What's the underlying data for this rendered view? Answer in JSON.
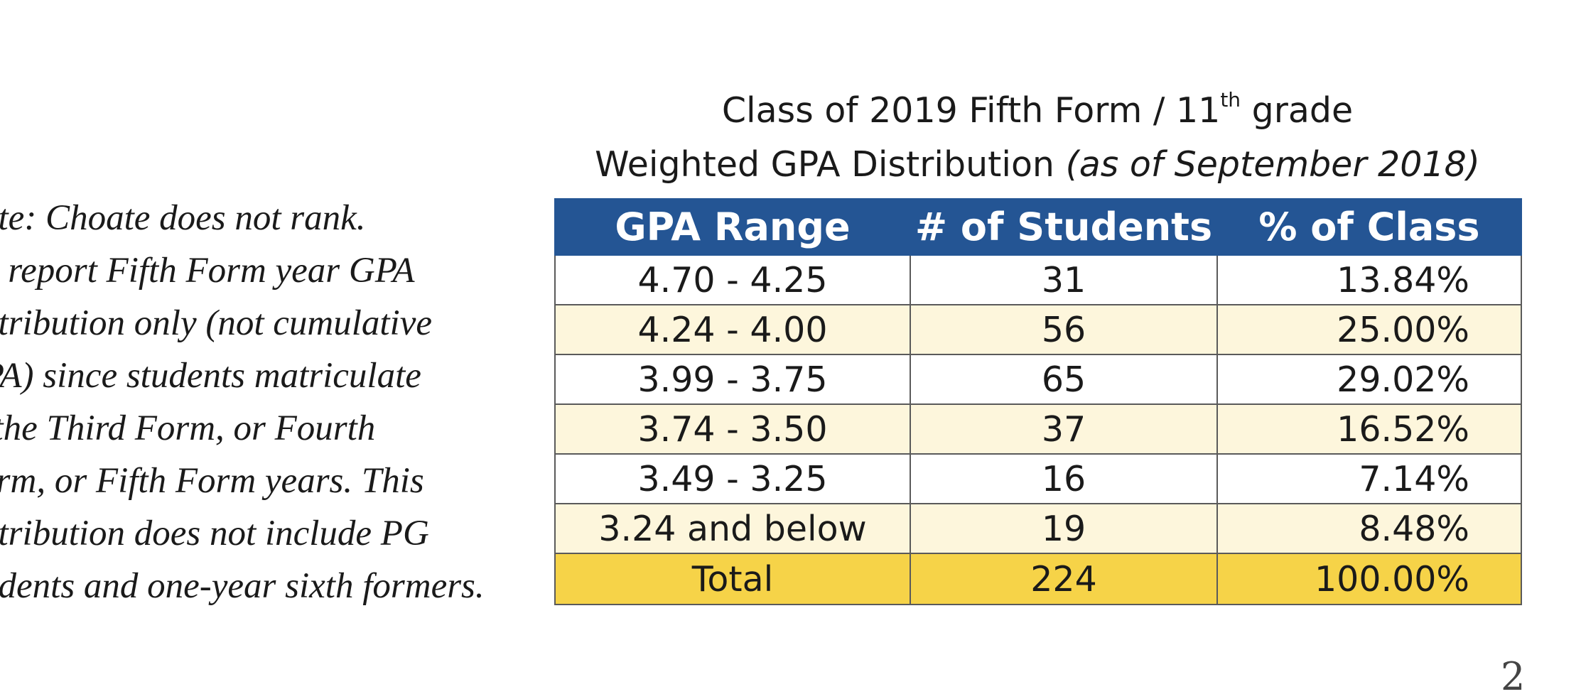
{
  "note": {
    "lines": [
      "Note: Choate does not rank.",
      "We report Fifth Form year GPA",
      "distribution only (not cumulative",
      "GPA) since students matriculate",
      "in the Third Form, or Fourth",
      "Form, or Fifth Form years. This",
      "distribution does not include PG",
      "students and one-year sixth formers."
    ]
  },
  "title": {
    "line1_before": "Class of 2019 Fifth Form / 11",
    "line1_sup": "th",
    "line1_after": " grade",
    "line2_main": "Weighted GPA Distribution ",
    "line2_italic": "(as of September 2018)"
  },
  "table": {
    "headers": [
      "GPA Range",
      "# of Students",
      "% of Class"
    ],
    "rows": [
      {
        "range": "4.70 - 4.25",
        "students": "31",
        "percent": "13.84%"
      },
      {
        "range": "4.24 - 4.00",
        "students": "56",
        "percent": "25.00%"
      },
      {
        "range": "3.99 - 3.75",
        "students": "65",
        "percent": "29.02%"
      },
      {
        "range": "3.74 - 3.50",
        "students": "37",
        "percent": "16.52%"
      },
      {
        "range": "3.49 - 3.25",
        "students": "16",
        "percent": "7.14%"
      },
      {
        "range": "3.24 and below",
        "students": "19",
        "percent": "8.48%"
      }
    ],
    "total": {
      "label": "Total",
      "students": "224",
      "percent": "100.00%"
    }
  },
  "colors": {
    "header_bg": "#245594",
    "row_alt_bg": "#fdf6dc",
    "total_bg": "#f6d348"
  },
  "page_number": "2"
}
